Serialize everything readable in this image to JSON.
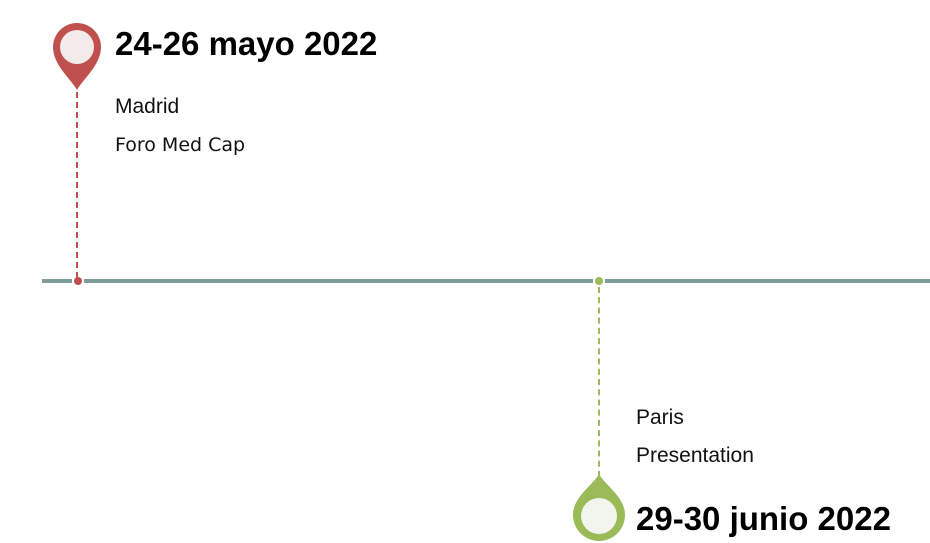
{
  "colors": {
    "timeline": "#7a9e97",
    "event_1_accent": "#c0504d",
    "event_2_accent": "#9bbb59",
    "pin_inner": "#f3f3f0"
  },
  "events": [
    {
      "date": "24-26 mayo 2022",
      "place": "Madrid",
      "description": "Foro Med Cap",
      "icon": "map-pin-icon"
    },
    {
      "date": "29-30 junio 2022",
      "place": "Paris",
      "description": "Presentation",
      "icon": "map-pin-icon"
    }
  ]
}
